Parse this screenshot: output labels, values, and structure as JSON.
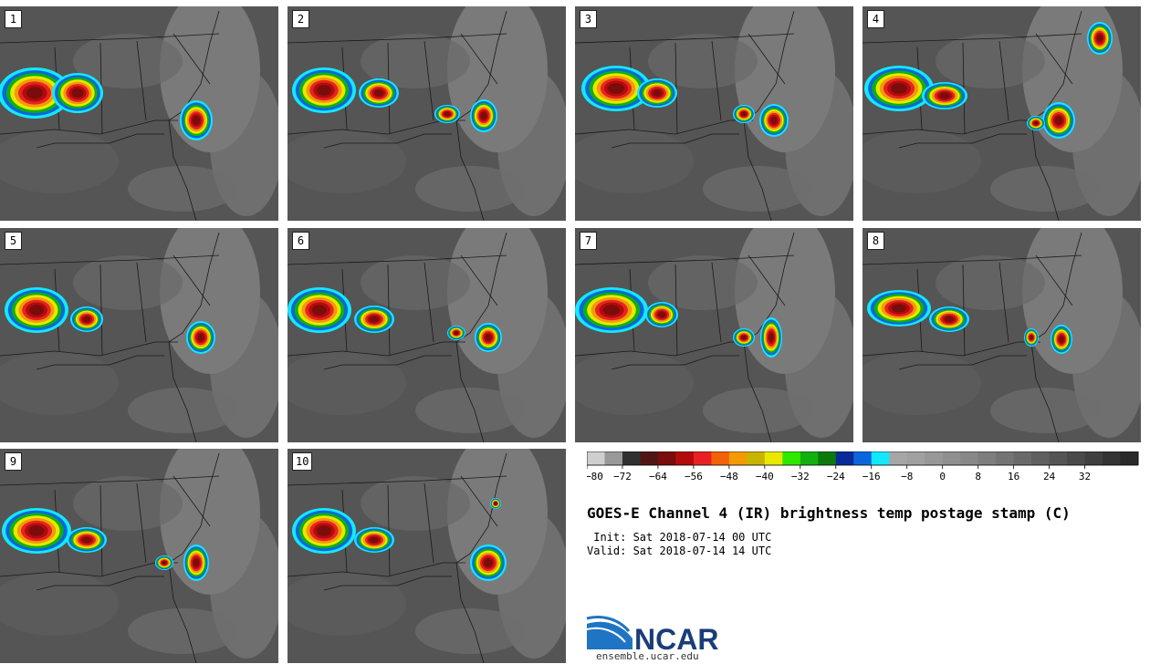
{
  "panels": [
    {
      "num": "1"
    },
    {
      "num": "2"
    },
    {
      "num": "3"
    },
    {
      "num": "4"
    },
    {
      "num": "5"
    },
    {
      "num": "6"
    },
    {
      "num": "7"
    },
    {
      "num": "8"
    },
    {
      "num": "9"
    },
    {
      "num": "10"
    }
  ],
  "colorbar": {
    "colors": [
      "#cfcfcf",
      "#999999",
      "#303030",
      "#501616",
      "#7a0c0c",
      "#b30b0b",
      "#e82222",
      "#f26207",
      "#f39a07",
      "#c8b400",
      "#e8e800",
      "#2ee800",
      "#10b010",
      "#0a7a0a",
      "#0a2a9a",
      "#0a66dc",
      "#14e8ff",
      "#a6a6a6",
      "#a0a0a0",
      "#989898",
      "#909090",
      "#888888",
      "#7e7e7e",
      "#747474",
      "#6a6a6a",
      "#606060",
      "#555555",
      "#4a4a4a",
      "#3f3f3f",
      "#343434",
      "#2a2a2a"
    ],
    "tick_labels": [
      "−80",
      "−72",
      "−64",
      "−56",
      "−48",
      "−40",
      "−32",
      "−24",
      "−16",
      "−8",
      "0",
      "8",
      "16",
      "24",
      "32"
    ]
  },
  "title": "GOES-E Channel 4 (IR) brightness temp postage stamp (C)",
  "init_line": " Init: Sat 2018-07-14 00 UTC",
  "valid_line": "Valid: Sat 2018-07-14 14 UTC",
  "logo_text": "NCAR",
  "url": "ensemble.ucar.edu"
}
